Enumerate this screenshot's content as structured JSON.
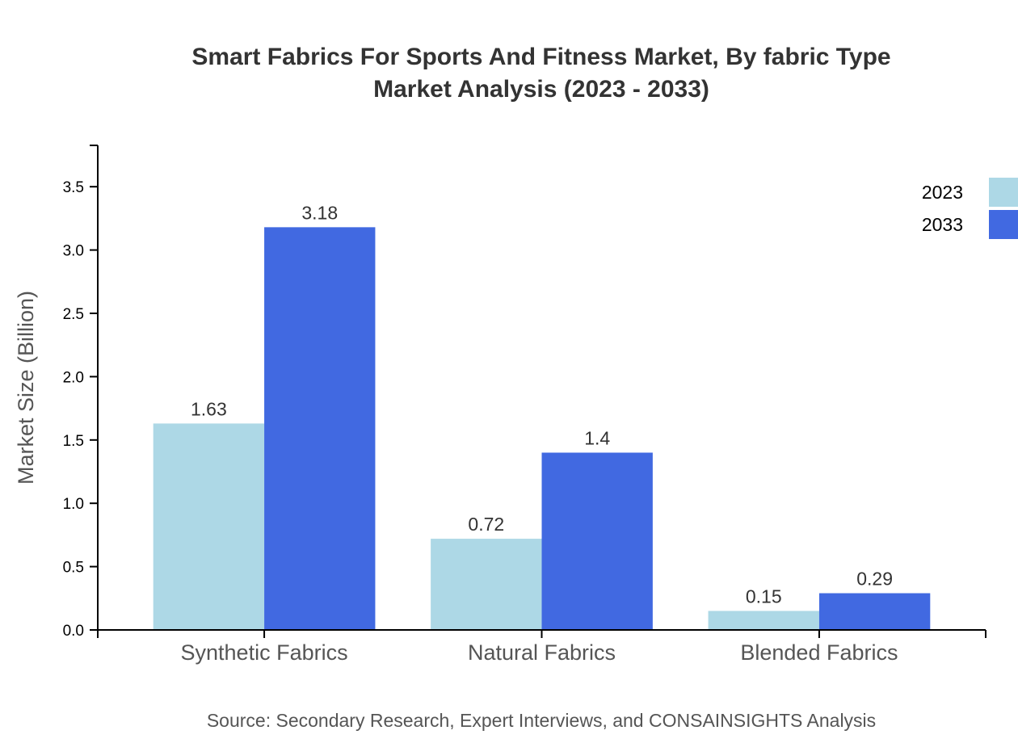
{
  "chart_data": {
    "type": "bar",
    "title": [
      "Smart Fabrics For Sports And Fitness Market, By fabric Type",
      "Market Analysis (2023 - 2033)"
    ],
    "xlabel": "",
    "ylabel": "Market Size (Billion)",
    "categories": [
      "Synthetic Fabrics",
      "Natural Fabrics",
      "Blended Fabrics"
    ],
    "series": [
      {
        "name": "2023",
        "color": "#add8e6",
        "values": [
          1.63,
          0.72,
          0.15
        ]
      },
      {
        "name": "2033",
        "color": "#4169e1",
        "values": [
          3.18,
          1.4,
          0.29
        ]
      }
    ],
    "ylim": [
      0,
      3.82
    ],
    "yticks": [
      "0.0",
      "0.5",
      "1.0",
      "1.5",
      "2.0",
      "2.5",
      "3.0",
      "3.5"
    ],
    "grid": false,
    "legend_position": "top-right",
    "source": "Source: Secondary Research, Expert Interviews, and CONSAINSIGHTS Analysis"
  }
}
